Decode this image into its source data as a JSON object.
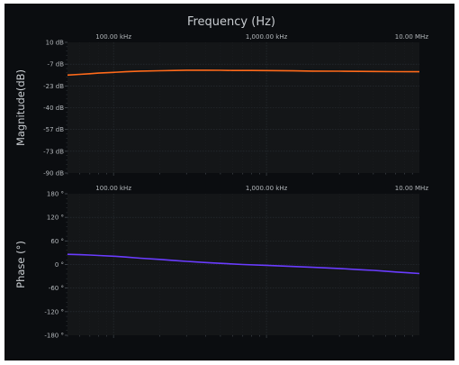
{
  "chart_data": [
    {
      "type": "line",
      "title": "Frequency (Hz)",
      "xlabel": "Frequency (Hz)",
      "ylabel": "Magnitude(dB)",
      "xscale": "log",
      "xlim": [
        50000,
        10000000
      ],
      "ylim": [
        -90,
        10
      ],
      "xtick_labels": [
        "100.00 kHz",
        "1,000.00 kHz",
        "10.00 MHz"
      ],
      "ytick_labels": [
        "10 dB",
        "-7 dB",
        "-23 dB",
        "-40 dB",
        "-57 dB",
        "-73 dB",
        "-90 dB"
      ],
      "grid": true,
      "series": [
        {
          "color": "#ff6a1a",
          "x": [
            50000,
            60000,
            70000,
            80000,
            100000,
            120000,
            150000,
            200000,
            250000,
            300000,
            400000,
            500000,
            600000,
            800000,
            1000000,
            1500000,
            2000000,
            3000000,
            4000000,
            5000000,
            7000000,
            10000000
          ],
          "y": [
            -15,
            -14.5,
            -14,
            -13.5,
            -13,
            -12.5,
            -12,
            -11.7,
            -11.5,
            -11.3,
            -11.3,
            -11.4,
            -11.5,
            -11.5,
            -11.6,
            -11.8,
            -12,
            -12.1,
            -12.2,
            -12.3,
            -12.4,
            -12.5
          ]
        }
      ]
    },
    {
      "type": "line",
      "xlabel": "",
      "ylabel": "Phase (°)",
      "xscale": "log",
      "xlim": [
        50000,
        10000000
      ],
      "ylim": [
        -180,
        180
      ],
      "xtick_labels": [
        "100.00 kHz",
        "1,000.00 kHz",
        "10.00 MHz"
      ],
      "ytick_labels": [
        "180 °",
        "120 °",
        "60 °",
        "0 °",
        "-60 °",
        "-120 °",
        "-180 °"
      ],
      "grid": true,
      "series": [
        {
          "color": "#6a3cff",
          "x": [
            50000,
            60000,
            70000,
            80000,
            100000,
            120000,
            150000,
            200000,
            250000,
            300000,
            400000,
            500000,
            700000,
            1000000,
            1500000,
            2000000,
            3000000,
            4000000,
            5000000,
            6000000,
            7000000,
            8500000,
            10000000
          ],
          "y": [
            26,
            25,
            24,
            23,
            21,
            19,
            16,
            13,
            10,
            8,
            5,
            3,
            0,
            -2,
            -5,
            -7,
            -10,
            -13,
            -15,
            -17,
            -19,
            -21,
            -23
          ]
        }
      ]
    }
  ],
  "colors": {
    "background": "#0b0d10",
    "plot_area": "#141618",
    "grid": "#2a3036",
    "text": "#c8ccd0",
    "magnitude_trace": "#ff6a1a",
    "phase_trace": "#6a3cff"
  }
}
